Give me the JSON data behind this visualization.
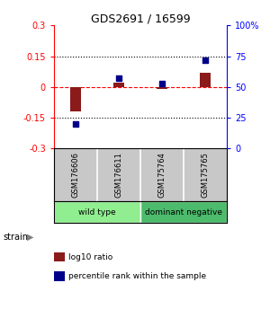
{
  "title": "GDS2691 / 16599",
  "samples": [
    "GSM176606",
    "GSM176611",
    "GSM175764",
    "GSM175765"
  ],
  "log10_ratio": [
    -0.12,
    0.02,
    -0.01,
    0.07
  ],
  "percentile_rank": [
    20,
    57,
    53,
    72
  ],
  "groups": [
    {
      "label": "wild type",
      "samples": [
        0,
        1
      ],
      "color": "#90EE90"
    },
    {
      "label": "dominant negative",
      "samples": [
        2,
        3
      ],
      "color": "#4CBB6C"
    }
  ],
  "group_label": "strain",
  "ylim_left": [
    -0.3,
    0.3
  ],
  "ylim_right": [
    0,
    100
  ],
  "yticks_left": [
    -0.3,
    -0.15,
    0,
    0.15,
    0.3
  ],
  "ytick_labels_left": [
    "-0.3",
    "-0.15",
    "0",
    "0.15",
    "0.3"
  ],
  "yticks_right": [
    0,
    25,
    50,
    75,
    100
  ],
  "ytick_labels_right": [
    "0",
    "25",
    "50",
    "75",
    "100%"
  ],
  "hlines": [
    -0.15,
    0,
    0.15
  ],
  "hline_colors": [
    "black",
    "red",
    "black"
  ],
  "hline_styles": [
    "dotted",
    "dashed",
    "dotted"
  ],
  "bar_color": "#8B1A1A",
  "square_color": "#00008B",
  "bar_width": 0.25,
  "square_size": 25,
  "background_color": "#ffffff",
  "sample_bg_color": "#c8c8c8",
  "legend_red_label": "log10 ratio",
  "legend_blue_label": "percentile rank within the sample"
}
